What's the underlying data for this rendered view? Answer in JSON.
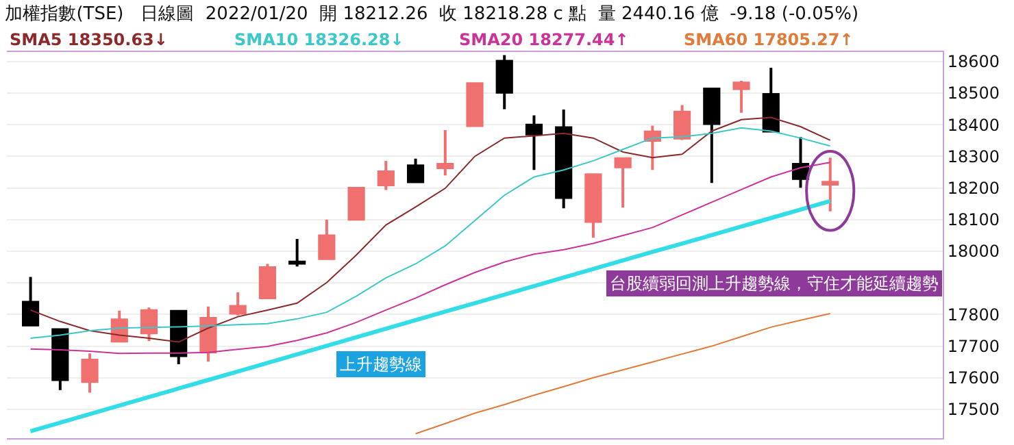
{
  "chart_data": {
    "type": "candlestick",
    "title": "加權指數(TSE)   日線圖  2022/01/20  開 18212.26  收 18218.28 c 點  量 2440.16 億  -9.18 (-0.05%)",
    "categories": [
      null,
      null,
      null,
      null,
      null,
      null,
      null,
      null,
      null,
      null,
      null,
      null,
      null,
      null,
      null,
      null,
      null,
      null,
      null,
      null,
      null,
      null,
      null,
      null,
      null,
      null,
      null,
      null
    ],
    "ohlc": [
      [
        17839,
        17919,
        17767,
        17767
      ],
      [
        17752,
        17752,
        17561,
        17594
      ],
      [
        17588,
        17677,
        17553,
        17656
      ],
      [
        17716,
        17812,
        17716,
        17783
      ],
      [
        17742,
        17822,
        17716,
        17812
      ],
      [
        17810,
        17810,
        17643,
        17670
      ],
      [
        17681,
        17825,
        17651,
        17788
      ],
      [
        17804,
        17870,
        17797,
        17826
      ],
      [
        17853,
        17960,
        17853,
        17948
      ],
      [
        17966,
        18039,
        17952,
        17962
      ],
      [
        17977,
        18100,
        17977,
        18049
      ],
      [
        18101,
        18199,
        18101,
        18199
      ],
      [
        18210,
        18286,
        18194,
        18251
      ],
      [
        18270,
        18293,
        18216,
        18220
      ],
      [
        18264,
        18383,
        18240,
        18275
      ],
      [
        18397,
        18530,
        18397,
        18530
      ],
      [
        18601,
        18620,
        18449,
        18503
      ],
      [
        18399,
        18430,
        18257,
        18371
      ],
      [
        18391,
        18448,
        18136,
        18170
      ],
      [
        18094,
        18245,
        18043,
        18242
      ],
      [
        18267,
        18297,
        18138,
        18293
      ],
      [
        18351,
        18397,
        18257,
        18377
      ],
      [
        18358,
        18462,
        18352,
        18440
      ],
      [
        18513,
        18513,
        18216,
        18404
      ],
      [
        18514,
        18539,
        18438,
        18532
      ],
      [
        18496,
        18580,
        18380,
        18380
      ],
      [
        18275,
        18361,
        18201,
        18230
      ],
      [
        18212,
        18296,
        18126,
        18218
      ]
    ],
    "colors": [
      "#000000",
      "#000000",
      "#f07070",
      "#f07070",
      "#f07070",
      "#000000",
      "#f07070",
      "#f07070",
      "#f07070",
      "#000000",
      "#f07070",
      "#f07070",
      "#f07070",
      "#000000",
      "#f07070",
      "#f07070",
      "#000000",
      "#000000",
      "#000000",
      "#f07070",
      "#f07070",
      "#f07070",
      "#f07070",
      "#000000",
      "#f07070",
      "#000000",
      "#000000",
      "#f07070"
    ],
    "series": [
      {
        "name": "SMA5 18350.63↓",
        "type": "line",
        "color": "#8b2a2a",
        "values": [
          17814,
          17778,
          17749,
          17735,
          17725,
          17713,
          17757,
          17793,
          17814,
          17836,
          17901,
          17988,
          18083,
          18140,
          18199,
          18300,
          18358,
          18365,
          18373,
          18358,
          18314,
          18296,
          18307,
          18380,
          18416,
          18423,
          18394,
          18351
        ]
      },
      {
        "name": "SMA10 18326.28↓",
        "type": "line",
        "color": "#3cc8c8",
        "values": [
          17725,
          17735,
          17749,
          17757,
          17759,
          17761,
          17764,
          17768,
          17771,
          17786,
          17807,
          17858,
          17916,
          17960,
          18017,
          18097,
          18177,
          18235,
          18257,
          18286,
          18322,
          18358,
          18362,
          18373,
          18390,
          18380,
          18358,
          18333
        ]
      },
      {
        "name": "SMA20 18277.44↑",
        "type": "line",
        "color": "#cc3399",
        "values": [
          17691,
          17688,
          17684,
          17677,
          17678,
          17678,
          17680,
          17690,
          17699,
          17718,
          17742,
          17775,
          17814,
          17852,
          17894,
          17933,
          17966,
          17991,
          18005,
          18025,
          18050,
          18075,
          18115,
          18155,
          18195,
          18235,
          18264,
          18281
        ]
      },
      {
        "name": "SMA60 17805.27↑",
        "type": "line",
        "color": "#e07b39",
        "values": [
          null,
          null,
          null,
          null,
          null,
          null,
          null,
          null,
          null,
          null,
          null,
          null,
          null,
          17423,
          17455,
          17488,
          17515,
          17545,
          17572,
          17600,
          17625,
          17650,
          17675,
          17700,
          17730,
          17760,
          17782,
          17803
        ]
      },
      {
        "type": "line",
        "color": "#33dde8",
        "values": [
          17431,
          17458,
          17485,
          17512,
          17539,
          17566,
          17593,
          17620,
          17647,
          17674,
          17701,
          17728,
          17755,
          17782,
          17809,
          17836,
          17863,
          17890,
          17917,
          17944,
          17971,
          17998,
          18024,
          18051,
          18078,
          18105,
          18132,
          18159
        ]
      }
    ],
    "annotations": [
      "上升趨勢線",
      "台股續弱回測上升趨勢線，守住才能延續趨勢"
    ],
    "ylim": [
      17409,
      18630
    ],
    "yticks": [
      17500,
      17600,
      17700,
      17800,
      {
        "value": 17900,
        "label": null
      },
      18000,
      18100,
      18200,
      18300,
      18400,
      18500,
      18600
    ],
    "tick_labels": "y",
    "grid": "y",
    "legend": "top"
  }
}
